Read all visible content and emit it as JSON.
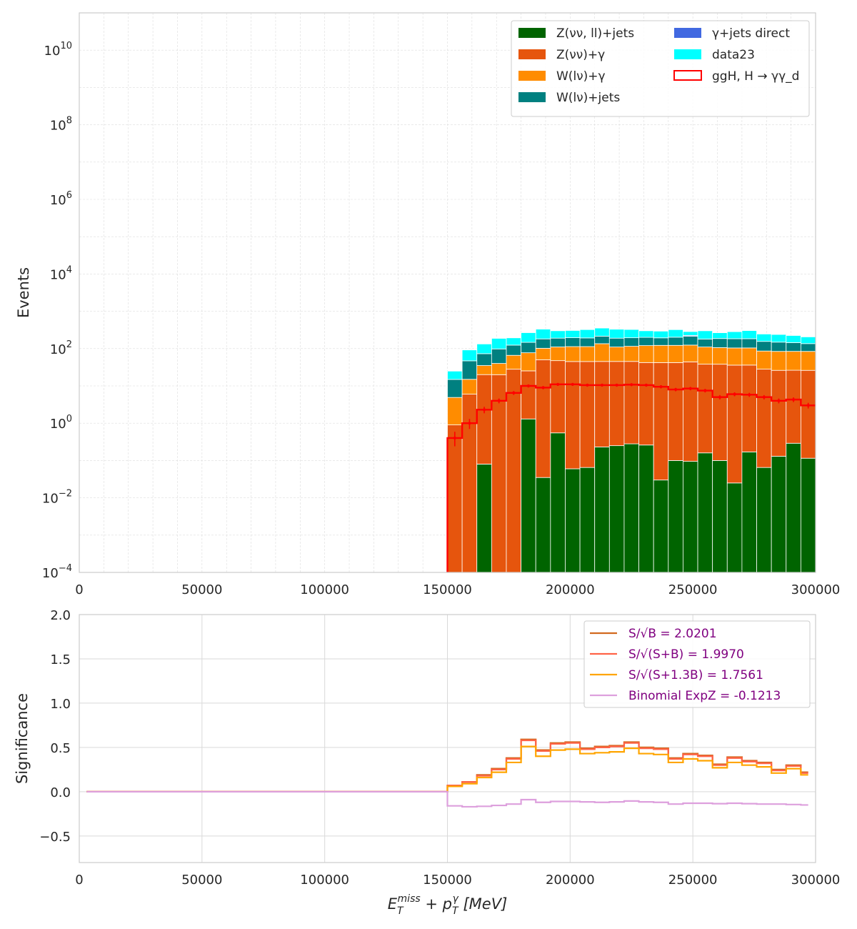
{
  "chart_data": [
    {
      "type": "bar",
      "stacked": true,
      "yscale": "log",
      "xlim": [
        0,
        300000
      ],
      "ylim": [
        0.0001,
        100000000000
      ],
      "ylabel": "Events",
      "xticks": [
        "0",
        "50000",
        "100000",
        "150000",
        "200000",
        "250000",
        "300000"
      ],
      "yticks": [
        {
          "base": "10",
          "exp": "−4",
          "value": 0.0001
        },
        {
          "base": "10",
          "exp": "−2",
          "value": 0.01
        },
        {
          "base": "10",
          "exp": "0",
          "value": 1
        },
        {
          "base": "10",
          "exp": "2",
          "value": 100
        },
        {
          "base": "10",
          "exp": "4",
          "value": 10000
        },
        {
          "base": "10",
          "exp": "6",
          "value": 1000000
        },
        {
          "base": "10",
          "exp": "8",
          "value": 100000000
        },
        {
          "base": "10",
          "exp": "10",
          "value": 10000000000
        }
      ],
      "grid": true,
      "legend_position": "top-right",
      "bin_edges": [
        150000,
        156000,
        162000,
        168000,
        174000,
        180000,
        186000,
        192000,
        198000,
        204000,
        210000,
        216000,
        222000,
        228000,
        234000,
        240000,
        246000,
        252000,
        258000,
        264000,
        270000,
        276000,
        282000,
        288000,
        294000,
        300000
      ],
      "series": [
        {
          "name": "Z(νν, ll)+jets",
          "color": "#006400",
          "values": [
            0,
            0,
            0.08,
            0,
            0,
            1.3,
            0.035,
            0.55,
            0.06,
            0.065,
            0.23,
            0.25,
            0.28,
            0.26,
            0.03,
            0.1,
            0.095,
            0.16,
            0.1,
            0.025,
            0.17,
            0.065,
            0.13,
            0.29,
            0.115
          ]
        },
        {
          "name": "Z(νν)+γ",
          "color": "#e6550d",
          "values": [
            0.9,
            6,
            20,
            20,
            28,
            24,
            50,
            47,
            45,
            45,
            45,
            45,
            45,
            42,
            42,
            42,
            44,
            38,
            38,
            36,
            36,
            28,
            26,
            26,
            26
          ]
        },
        {
          "name": "W(lν)+γ",
          "color": "#ff8c00",
          "values": [
            4,
            9,
            15,
            20,
            38,
            52,
            52,
            63,
            68,
            68,
            90,
            65,
            70,
            78,
            80,
            80,
            80,
            72,
            68,
            68,
            68,
            58,
            58,
            58,
            58
          ]
        },
        {
          "name": "W(lν)+jets",
          "color": "#008080",
          "values": [
            10,
            32,
            38,
            58,
            58,
            70,
            80,
            80,
            83,
            80,
            80,
            80,
            80,
            80,
            72,
            80,
            90,
            70,
            80,
            80,
            80,
            70,
            65,
            60,
            52
          ]
        },
        {
          "name": "γ+jets direct",
          "color": "#4169e1",
          "values": [
            0,
            0,
            0,
            0,
            0,
            0,
            0,
            0,
            0,
            0,
            0,
            0,
            0,
            0,
            0,
            0,
            12,
            0,
            0,
            0,
            0,
            0,
            0,
            0,
            0
          ]
        },
        {
          "name": "data23",
          "color": "#00ffff",
          "values": [
            10,
            45,
            60,
            90,
            70,
            120,
            150,
            110,
            110,
            130,
            140,
            140,
            130,
            100,
            100,
            120,
            60,
            120,
            80,
            100,
            120,
            90,
            90,
            80,
            70
          ]
        },
        {
          "name": "ggH, H → γγ_d",
          "color": "#ff0000",
          "style": "step-outline",
          "values": [
            0.4,
            1,
            2.3,
            4,
            6.5,
            10,
            9,
            11,
            11,
            10.5,
            10.5,
            10.5,
            10.8,
            10.5,
            9.5,
            8,
            8.5,
            7.5,
            5,
            6,
            5.8,
            5,
            4,
            4.3,
            3
          ]
        }
      ]
    },
    {
      "type": "line",
      "step": true,
      "xlim": [
        0,
        300000
      ],
      "ylim": [
        -0.8,
        2.0
      ],
      "xlabel_main": "E",
      "xlabel_sub1": "T",
      "xlabel_sup1": "miss",
      "xlabel_mid": " + p",
      "xlabel_sub2": "T",
      "xlabel_sup2": "γ",
      "xlabel_unit": " [MeV]",
      "ylabel": "Significance",
      "xticks": [
        "0",
        "50000",
        "100000",
        "150000",
        "200000",
        "250000",
        "300000"
      ],
      "yticks": [
        {
          "label": "2.0",
          "value": 2.0
        },
        {
          "label": "1.5",
          "value": 1.5
        },
        {
          "label": "1.0",
          "value": 1.0
        },
        {
          "label": "0.5",
          "value": 0.5
        },
        {
          "label": "0.0",
          "value": 0.0
        },
        {
          "label": "−0.5",
          "value": -0.5
        }
      ],
      "grid": true,
      "legend_position": "top-right",
      "x_start": 3000,
      "x_end": 297000,
      "bin_edges": [
        150000,
        156000,
        162000,
        168000,
        174000,
        180000,
        186000,
        192000,
        198000,
        204000,
        210000,
        216000,
        222000,
        228000,
        234000,
        240000,
        246000,
        252000,
        258000,
        264000,
        270000,
        276000,
        282000,
        288000,
        294000,
        297000
      ],
      "series": [
        {
          "name": "S/√B = 2.0201",
          "color": "#d2691e",
          "values": [
            0.07,
            0.11,
            0.19,
            0.26,
            0.38,
            0.59,
            0.47,
            0.55,
            0.56,
            0.49,
            0.51,
            0.52,
            0.56,
            0.5,
            0.49,
            0.38,
            0.43,
            0.41,
            0.31,
            0.39,
            0.35,
            0.33,
            0.25,
            0.3,
            0.22
          ]
        },
        {
          "name": "S/√(S+B) = 1.9970",
          "color": "#ff6347",
          "values": [
            0.07,
            0.11,
            0.18,
            0.25,
            0.37,
            0.58,
            0.46,
            0.54,
            0.55,
            0.48,
            0.5,
            0.51,
            0.55,
            0.49,
            0.48,
            0.37,
            0.42,
            0.4,
            0.3,
            0.38,
            0.34,
            0.32,
            0.24,
            0.29,
            0.21
          ]
        },
        {
          "name": "S/√(S+1.3B) = 1.7561",
          "color": "#ffa500",
          "values": [
            0.06,
            0.09,
            0.16,
            0.22,
            0.33,
            0.51,
            0.4,
            0.47,
            0.48,
            0.43,
            0.44,
            0.45,
            0.49,
            0.43,
            0.42,
            0.33,
            0.37,
            0.35,
            0.27,
            0.33,
            0.3,
            0.28,
            0.21,
            0.26,
            0.19
          ]
        },
        {
          "name": "Binomial ExpZ = -0.1213",
          "color": "#dda0dd",
          "values": [
            -0.16,
            -0.17,
            -0.165,
            -0.155,
            -0.14,
            -0.09,
            -0.12,
            -0.11,
            -0.11,
            -0.115,
            -0.12,
            -0.115,
            -0.105,
            -0.115,
            -0.12,
            -0.14,
            -0.13,
            -0.13,
            -0.135,
            -0.13,
            -0.135,
            -0.14,
            -0.14,
            -0.145,
            -0.15
          ]
        }
      ]
    }
  ]
}
